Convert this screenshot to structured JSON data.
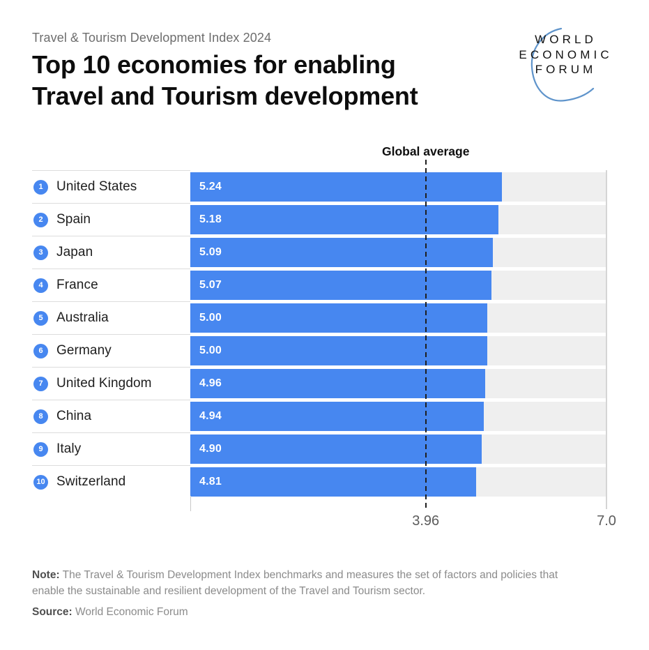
{
  "header": {
    "kicker": "Travel & Tourism Development Index 2024",
    "title_line1": "Top 10 economies for enabling",
    "title_line2": "Travel and Tourism development"
  },
  "logo": {
    "line1": "WORLD",
    "line2": "ECONOMIC",
    "line3": "FORUM",
    "arc_color": "#5f94cb"
  },
  "chart_data": {
    "type": "bar",
    "orientation": "horizontal",
    "title": "Top 10 economies for enabling Travel and Tourism development",
    "subtitle": "Travel & Tourism Development Index 2024",
    "ranks": [
      1,
      2,
      3,
      4,
      5,
      6,
      7,
      8,
      9,
      10
    ],
    "categories": [
      "United States",
      "Spain",
      "Japan",
      "France",
      "Australia",
      "Germany",
      "United Kingdom",
      "China",
      "Italy",
      "Switzerland"
    ],
    "values": [
      5.24,
      5.18,
      5.09,
      5.07,
      5.0,
      5.0,
      4.96,
      4.94,
      4.9,
      4.81
    ],
    "value_labels": [
      "5.24",
      "5.18",
      "5.09",
      "5.07",
      "5.00",
      "5.00",
      "4.96",
      "4.94",
      "4.90",
      "4.81"
    ],
    "xlim": [
      0,
      7.0
    ],
    "global_average": {
      "label": "Global average",
      "value": 3.96,
      "tick_label": "3.96"
    },
    "axis_max_label": "7.0",
    "bar_color": "#4787f0",
    "track_color": "#efefef",
    "grid": "off",
    "legend": "none"
  },
  "footer": {
    "note_label": "Note:",
    "note_text": "The Travel & Tourism Development Index benchmarks and measures the set of factors and policies that enable the sustainable and resilient development of the Travel and Tourism sector.",
    "source_label": "Source:",
    "source_text": "World Economic Forum"
  }
}
